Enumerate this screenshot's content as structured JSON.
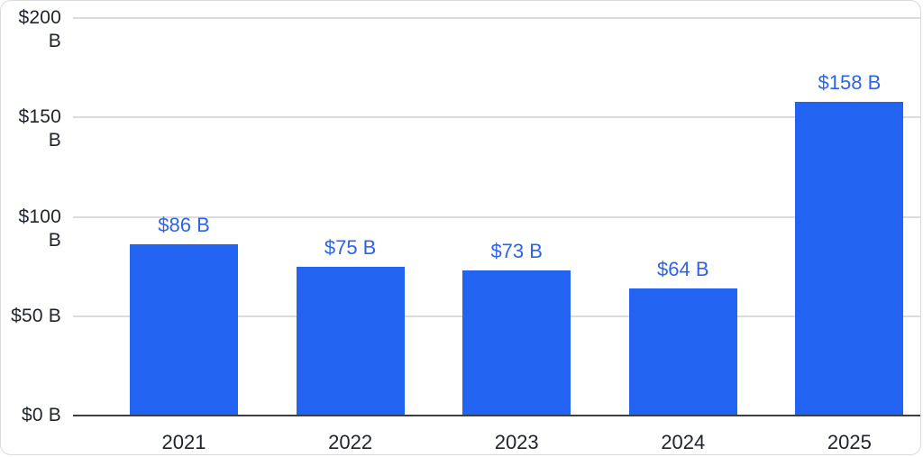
{
  "chart_data": {
    "type": "bar",
    "title": "",
    "xlabel": "",
    "ylabel": "",
    "categories": [
      "2021",
      "2022",
      "2023",
      "2024",
      "2025"
    ],
    "values": [
      86,
      75,
      73,
      64,
      158
    ],
    "value_labels": [
      "$86 B",
      "$75 B",
      "$73 B",
      "$64 B",
      "$158 B"
    ],
    "y_tick_values": [
      0,
      50,
      100,
      150,
      200
    ],
    "y_tick_labels": [
      "$0 B",
      "$50 B",
      "$100 B",
      "$150 B",
      "$200 B"
    ],
    "ylim": [
      0,
      200
    ],
    "grid": true,
    "legend": false,
    "colors": {
      "bar": "#2363f1",
      "value_label": "#2c64e9",
      "gridline": "#dcdcdc",
      "axis_line": "#3a3f46",
      "tick_text": "#1e232e",
      "background": "#ffffff",
      "frame_border": "#d9dadc"
    }
  }
}
